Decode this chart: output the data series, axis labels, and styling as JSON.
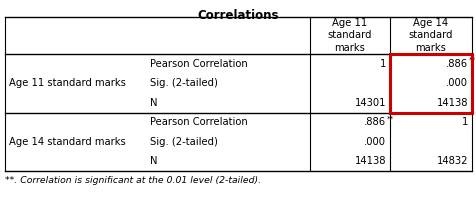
{
  "title": "Correlations",
  "col_headers": [
    "Age 11\nstandard\nmarks",
    "Age 14\nstandard\nmarks"
  ],
  "rows": [
    {
      "row_label": "Age 11 standard marks",
      "sub_rows": [
        {
          "label": "Pearson Correlation",
          "age11": "1",
          "age11_sup": "",
          "age14": ".886",
          "age14_sup": "**"
        },
        {
          "label": "Sig. (2-tailed)",
          "age11": "",
          "age11_sup": "",
          "age14": ".000",
          "age14_sup": ""
        },
        {
          "label": "N",
          "age11": "14301",
          "age11_sup": "",
          "age14": "14138",
          "age14_sup": ""
        }
      ]
    },
    {
      "row_label": "Age 14 standard marks",
      "sub_rows": [
        {
          "label": "Pearson Correlation",
          "age11": ".886",
          "age11_sup": "**",
          "age14": "1",
          "age14_sup": ""
        },
        {
          "label": "Sig. (2-tailed)",
          "age11": ".000",
          "age11_sup": "",
          "age14": "",
          "age14_sup": ""
        },
        {
          "label": "N",
          "age11": "14138",
          "age11_sup": "",
          "age14": "14832",
          "age14_sup": ""
        }
      ]
    }
  ],
  "footnote": "**. Correlation is significant at the 0.01 level (2-tailed).",
  "highlight_color": "#cc0000",
  "bg_color": "#ffffff",
  "font_size": 7.2,
  "title_font_size": 8.5
}
